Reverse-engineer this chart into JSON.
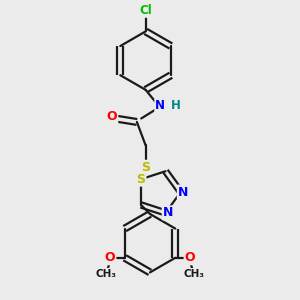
{
  "bg_color": "#ebebeb",
  "bond_color": "#1a1a1a",
  "bond_width": 1.6,
  "atom_colors": {
    "Cl": "#00bb00",
    "N": "#0000ff",
    "O": "#ff0000",
    "S": "#bbbb00",
    "H": "#008888",
    "C": "#1a1a1a"
  },
  "font_size": 8.5
}
